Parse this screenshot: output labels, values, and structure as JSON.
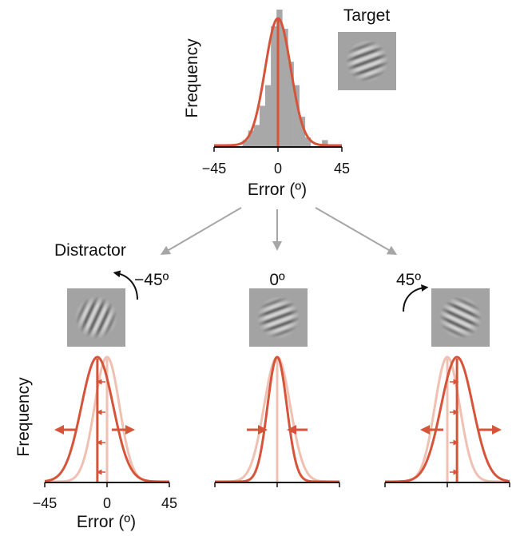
{
  "colors": {
    "fit": "#d6553a",
    "fit_light": "#f0c0b2",
    "histogram": "#a8a8a8",
    "axis": "#111111",
    "arrow_gray": "#a6a6a6",
    "patch_bg": "#a3a3a3"
  },
  "top": {
    "ylabel": "Frequency",
    "xlabel": "Error (º)",
    "ticks": [
      "−45",
      "0",
      "45"
    ],
    "target_label": "Target",
    "target_orientation_deg": 20
  },
  "distractor_label": "Distractor",
  "conditions": [
    {
      "label": "−45º",
      "orientation_deg": 65,
      "rotation_arrow": "counterclockwise",
      "shift": -7
    },
    {
      "label": "0º",
      "orientation_deg": 20,
      "rotation_arrow": "none",
      "shift": 0
    },
    {
      "label": "45º",
      "orientation_deg": -25,
      "rotation_arrow": "clockwise",
      "shift": 7
    }
  ],
  "bottom": {
    "ylabel": "Frequency",
    "xlabel": "Error (º)",
    "ticks": [
      "−45",
      "0",
      "45"
    ]
  },
  "chart_data": {
    "type": "bar",
    "x": [
      -35,
      -31,
      -27,
      -23,
      -19,
      -15,
      -11,
      -7,
      -3,
      1,
      5,
      9,
      13,
      17,
      21,
      25,
      29,
      33,
      37
    ],
    "values": [
      0,
      0,
      0,
      0.05,
      0.12,
      0.16,
      0.3,
      0.45,
      0.88,
      1.0,
      0.86,
      0.62,
      0.45,
      0.22,
      0.07,
      0,
      0,
      0.05,
      0
    ],
    "fit_sigma": 9,
    "xlim": [
      -45,
      45
    ]
  }
}
